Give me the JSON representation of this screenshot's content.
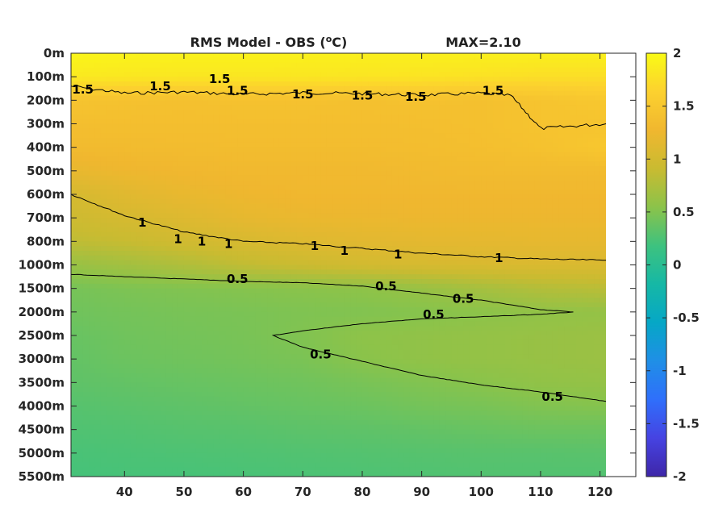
{
  "chart_data": {
    "type": "heatmap",
    "title": "RMS Model - OBS (",
    "title_super": "o",
    "title_unit": "C)",
    "max_label": "MAX=2.10",
    "xlabel": "",
    "ylabel": "",
    "x_ticks": [
      "40",
      "50",
      "60",
      "70",
      "80",
      "90",
      "100",
      "110",
      "120"
    ],
    "x_tick_values": [
      40,
      50,
      60,
      70,
      80,
      90,
      100,
      110,
      120
    ],
    "xlim": [
      31,
      121
    ],
    "y_ticks": [
      "0m",
      "100m",
      "200m",
      "300m",
      "400m",
      "500m",
      "600m",
      "700m",
      "800m",
      "1000m",
      "1500m",
      "2000m",
      "2500m",
      "3000m",
      "3500m",
      "4000m",
      "4500m",
      "5000m",
      "5500m"
    ],
    "colorbar": {
      "ticks": [
        "2",
        "1.5",
        "1",
        "0.5",
        "0",
        "-0.5",
        "-1",
        "-1.5",
        "-2"
      ],
      "tick_values": [
        2,
        1.5,
        1,
        0.5,
        0,
        -0.5,
        -1,
        -1.5,
        -2
      ],
      "range": [
        -2,
        2
      ],
      "colormap": "parula",
      "colors": [
        "#3e26a8",
        "#4643e2",
        "#2f6ffb",
        "#1f8fe6",
        "#06a7c6",
        "#16b8a5",
        "#3dc27f",
        "#8bc34a",
        "#c9bb31",
        "#f0b72f",
        "#fcd12f",
        "#f9fb15"
      ]
    },
    "field": {
      "depth_levels": [
        "0m",
        "100m",
        "200m",
        "300m",
        "400m",
        "500m",
        "600m",
        "700m",
        "800m",
        "1000m",
        "1500m",
        "2000m",
        "2500m",
        "3000m",
        "3500m",
        "4000m",
        "4500m",
        "5000m",
        "5500m"
      ],
      "x": [
        31,
        40,
        50,
        60,
        70,
        80,
        90,
        100,
        110,
        121
      ],
      "values": [
        [
          1.95,
          1.93,
          1.92,
          1.92,
          1.91,
          1.9,
          1.9,
          1.9,
          1.9,
          1.9
        ],
        [
          1.85,
          1.83,
          1.82,
          1.82,
          1.82,
          1.81,
          1.8,
          1.78,
          1.75,
          1.75
        ],
        [
          1.45,
          1.42,
          1.4,
          1.42,
          1.42,
          1.4,
          1.42,
          1.4,
          1.45,
          1.5
        ],
        [
          1.38,
          1.38,
          1.38,
          1.38,
          1.38,
          1.38,
          1.38,
          1.4,
          1.45,
          1.45
        ],
        [
          1.32,
          1.33,
          1.34,
          1.35,
          1.35,
          1.35,
          1.36,
          1.38,
          1.42,
          1.5
        ],
        [
          1.2,
          1.25,
          1.28,
          1.3,
          1.3,
          1.3,
          1.32,
          1.33,
          1.33,
          1.33
        ],
        [
          1.02,
          1.12,
          1.2,
          1.25,
          1.28,
          1.28,
          1.28,
          1.28,
          1.28,
          1.28
        ],
        [
          0.95,
          1.02,
          1.1,
          1.18,
          1.22,
          1.23,
          1.24,
          1.24,
          1.24,
          1.24
        ],
        [
          0.85,
          0.9,
          0.98,
          1.04,
          1.1,
          1.14,
          1.16,
          1.17,
          1.18,
          1.18
        ],
        [
          0.62,
          0.68,
          0.76,
          0.86,
          0.93,
          0.99,
          1.03,
          1.05,
          1.07,
          1.07
        ],
        [
          0.45,
          0.48,
          0.5,
          0.52,
          0.54,
          0.56,
          0.62,
          0.7,
          0.78,
          0.82
        ],
        [
          0.42,
          0.44,
          0.46,
          0.47,
          0.49,
          0.5,
          0.52,
          0.55,
          0.58,
          0.6
        ],
        [
          0.38,
          0.42,
          0.44,
          0.46,
          0.5,
          0.56,
          0.58,
          0.6,
          0.62,
          0.64
        ],
        [
          0.36,
          0.4,
          0.42,
          0.44,
          0.47,
          0.54,
          0.58,
          0.6,
          0.62,
          0.64
        ],
        [
          0.34,
          0.36,
          0.38,
          0.4,
          0.42,
          0.46,
          0.5,
          0.54,
          0.58,
          0.6
        ],
        [
          0.3,
          0.32,
          0.34,
          0.36,
          0.38,
          0.4,
          0.44,
          0.46,
          0.5,
          0.52
        ],
        [
          0.27,
          0.28,
          0.3,
          0.31,
          0.33,
          0.34,
          0.36,
          0.38,
          0.4,
          0.4
        ],
        [
          0.24,
          0.25,
          0.26,
          0.27,
          0.28,
          0.29,
          0.3,
          0.31,
          0.31,
          0.32
        ],
        [
          0.22,
          0.23,
          0.23,
          0.24,
          0.25,
          0.26,
          0.27,
          0.28,
          0.28,
          0.28
        ]
      ]
    },
    "contours": [
      {
        "level": "1.5",
        "points": [
          [
            31,
            140
          ],
          [
            40,
            170
          ],
          [
            50,
            165
          ],
          [
            60,
            175
          ],
          [
            70,
            168
          ],
          [
            80,
            172
          ],
          [
            90,
            178
          ],
          [
            100,
            170
          ],
          [
            105,
            180
          ],
          [
            110,
            320
          ],
          [
            121,
            300
          ]
        ]
      },
      {
        "level": "1",
        "points": [
          [
            31,
            600
          ],
          [
            40,
            690
          ],
          [
            50,
            760
          ],
          [
            60,
            800
          ],
          [
            70,
            820
          ],
          [
            80,
            860
          ],
          [
            90,
            900
          ],
          [
            100,
            930
          ],
          [
            110,
            950
          ],
          [
            121,
            960
          ]
        ]
      },
      {
        "level": "0.5",
        "points": [
          [
            31,
            1200
          ],
          [
            40,
            1250
          ],
          [
            50,
            1300
          ],
          [
            60,
            1350
          ],
          [
            70,
            1380
          ],
          [
            80,
            1450
          ],
          [
            90,
            1600
          ],
          [
            100,
            1750
          ],
          [
            110,
            1950
          ],
          [
            115.5,
            2000
          ],
          [
            110,
            2050
          ],
          [
            100,
            2100
          ],
          [
            90,
            2150
          ],
          [
            80,
            2250
          ],
          [
            70,
            2400
          ],
          [
            65,
            2500
          ],
          [
            70,
            2750
          ],
          [
            80,
            3050
          ],
          [
            90,
            3350
          ],
          [
            100,
            3550
          ],
          [
            110,
            3700
          ],
          [
            121,
            3900
          ]
        ]
      }
    ],
    "contour_labels": [
      {
        "text": "1.5",
        "x": 33,
        "y": 155
      },
      {
        "text": "1.5",
        "x": 46,
        "y": 140
      },
      {
        "text": "1.5",
        "x": 56,
        "y": 110
      },
      {
        "text": "1.5",
        "x": 59,
        "y": 160
      },
      {
        "text": "1.5",
        "x": 70,
        "y": 175
      },
      {
        "text": "1.5",
        "x": 80,
        "y": 180
      },
      {
        "text": "1.5",
        "x": 89,
        "y": 185
      },
      {
        "text": "1.5",
        "x": 102,
        "y": 160
      },
      {
        "text": "1",
        "x": 43,
        "y": 720
      },
      {
        "text": "1",
        "x": 49,
        "y": 790
      },
      {
        "text": "1",
        "x": 53,
        "y": 800
      },
      {
        "text": "1",
        "x": 57.5,
        "y": 820
      },
      {
        "text": "1",
        "x": 72,
        "y": 840
      },
      {
        "text": "1",
        "x": 77,
        "y": 880
      },
      {
        "text": "1",
        "x": 86,
        "y": 910
      },
      {
        "text": "1",
        "x": 103,
        "y": 940
      },
      {
        "text": "0.5",
        "x": 59,
        "y": 1300
      },
      {
        "text": "0.5",
        "x": 84,
        "y": 1450
      },
      {
        "text": "0.5",
        "x": 97,
        "y": 1720
      },
      {
        "text": "0.5",
        "x": 92,
        "y": 2050
      },
      {
        "text": "0.5",
        "x": 73,
        "y": 2900
      },
      {
        "text": "0.5",
        "x": 112,
        "y": 3800
      }
    ]
  }
}
